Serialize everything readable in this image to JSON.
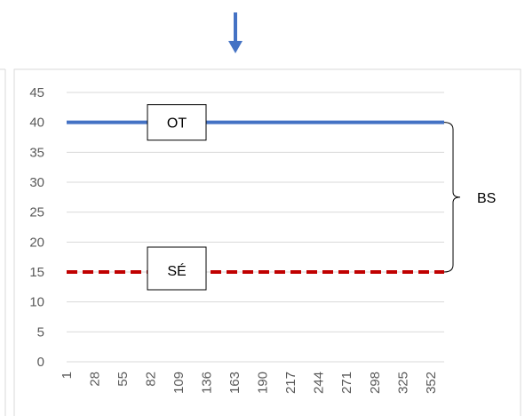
{
  "colors": {
    "ot_line": "#4472C4",
    "se_line": "#C00000",
    "arrow": "#4472C4",
    "gridline": "#D9D9D9",
    "frame": "#D9D9D9",
    "tick_text": "#595959"
  },
  "chart_data": {
    "type": "line",
    "title": "",
    "xlabel": "",
    "ylabel": "",
    "ylim": [
      0,
      45
    ],
    "y_ticks": [
      "0",
      "5",
      "10",
      "15",
      "20",
      "25",
      "30",
      "35",
      "40",
      "45"
    ],
    "x_range": [
      1,
      365
    ],
    "x_ticks": [
      "1",
      "28",
      "55",
      "82",
      "109",
      "136",
      "163",
      "190",
      "217",
      "244",
      "271",
      "298",
      "325",
      "352"
    ],
    "grid": true,
    "legend": "none",
    "series": [
      {
        "name": "OT",
        "x": [
          1,
          365
        ],
        "values": [
          40,
          40
        ],
        "style": "solid",
        "color": "#4472C4"
      },
      {
        "name": "SÉ",
        "x": [
          1,
          365
        ],
        "values": [
          15,
          15
        ],
        "style": "dashed",
        "color": "#C00000"
      }
    ],
    "annotations": {
      "ot_label": "OT",
      "se_label": "SÉ",
      "brace_label": "BS",
      "brace_range": [
        15,
        40
      ]
    },
    "indicator": "arrow-down"
  }
}
